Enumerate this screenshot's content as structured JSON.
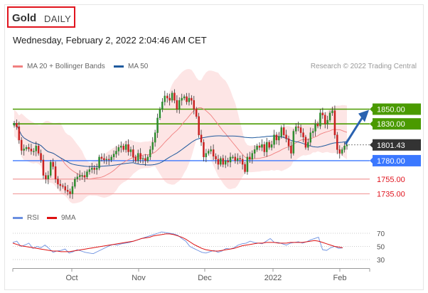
{
  "header": {
    "symbol": "Gold",
    "timeframe": "DAILY",
    "datetime": "Wednesday, February 2, 2022 2:04:46 AM CET"
  },
  "legend": {
    "bollinger": "MA 20 + Bollinger Bands",
    "ma50": "MA 50",
    "rsi": "RSI",
    "rsi_ma": "9MA",
    "copyright": "Research © 2022 Trading Central"
  },
  "colors": {
    "bollinger": "#f08080",
    "band_fill": "#fde0e0",
    "ma50": "#1f5a9e",
    "candle_up": "#2e8b2e",
    "candle_down": "#c82020",
    "resistance": "#4a9a00",
    "support_blue": "#3b78ff",
    "support_red": "#f3a3a3",
    "current": "#333333",
    "rsi": "#6a8fe0",
    "rsi_ma": "#dd1111",
    "arrow": "#2a62b0"
  },
  "chart_data": [
    {
      "type": "candlestick",
      "title": "",
      "xlabel": "",
      "ylabel": "",
      "xticks": [
        "Oct",
        "Nov",
        "Dec",
        "2022",
        "Feb"
      ],
      "ylim": [
        1712,
        1866
      ],
      "levels": [
        {
          "value": 1850.0,
          "label": "1850.00",
          "kind": "resistance"
        },
        {
          "value": 1830.0,
          "label": "1830.00",
          "kind": "resistance"
        },
        {
          "value": 1801.43,
          "label": "1801.43",
          "kind": "current"
        },
        {
          "value": 1780.0,
          "label": "1780.00",
          "kind": "pivot"
        },
        {
          "value": 1755.0,
          "label": "1755.00",
          "kind": "support"
        },
        {
          "value": 1735.0,
          "label": "1735.00",
          "kind": "support"
        }
      ],
      "close": [
        1831,
        1826,
        1808,
        1794,
        1796,
        1798,
        1796,
        1793,
        1793,
        1800,
        1790,
        1781,
        1760,
        1755,
        1760,
        1778,
        1772,
        1755,
        1748,
        1746,
        1745,
        1740,
        1738,
        1735,
        1745,
        1755,
        1758,
        1760,
        1760,
        1758,
        1765,
        1768,
        1770,
        1768,
        1770,
        1785,
        1783,
        1781,
        1782,
        1781,
        1785,
        1789,
        1793,
        1798,
        1800,
        1795,
        1802,
        1792,
        1795,
        1785,
        1780,
        1790,
        1782,
        1783,
        1780,
        1785,
        1795,
        1805,
        1818,
        1838,
        1850,
        1860,
        1868,
        1865,
        1862,
        1872,
        1862,
        1850,
        1862,
        1865,
        1867,
        1860,
        1865,
        1862,
        1850,
        1840,
        1815,
        1805,
        1785,
        1790,
        1793,
        1795,
        1786,
        1782,
        1775,
        1783,
        1775,
        1780,
        1778,
        1785,
        1785,
        1780,
        1783,
        1782,
        1775,
        1765,
        1785,
        1782,
        1790,
        1795,
        1800,
        1798,
        1802,
        1792,
        1805,
        1798,
        1802,
        1815,
        1808,
        1813,
        1825,
        1815,
        1810,
        1800,
        1790,
        1820,
        1826,
        1825,
        1818,
        1812,
        1798,
        1805,
        1818,
        1820,
        1830,
        1827,
        1845,
        1842,
        1830,
        1835,
        1845,
        1848,
        1815,
        1795,
        1790,
        1795,
        1800,
        1801.43
      ]
    },
    {
      "type": "line",
      "title": "",
      "xlabel": "",
      "ylabel": "",
      "yticks": [
        70,
        50,
        30
      ],
      "ylim": [
        20,
        80
      ],
      "series": [
        {
          "name": "RSI",
          "values": [
            56,
            58,
            50,
            52,
            55,
            47,
            50,
            48,
            52,
            47,
            41,
            43,
            44,
            46,
            40,
            42,
            45,
            43,
            41,
            40,
            39,
            42,
            45,
            48,
            51,
            53,
            52,
            54,
            55,
            56,
            58,
            60,
            62,
            64,
            66,
            68,
            70,
            72,
            71,
            70,
            69,
            67,
            62,
            58,
            50,
            47,
            44,
            41,
            40,
            42,
            44,
            41,
            43,
            47,
            46,
            48,
            52,
            54,
            55,
            58,
            56,
            55,
            54,
            58,
            62,
            56,
            56,
            54,
            52,
            55,
            56,
            57,
            55,
            57,
            60,
            62,
            64,
            45,
            44,
            48,
            50,
            47,
            48
          ]
        },
        {
          "name": "9MA",
          "values": [
            55,
            53,
            51,
            50,
            49,
            48,
            47,
            46,
            45,
            44,
            43,
            43,
            42,
            42,
            42,
            43,
            44,
            45,
            46,
            47,
            48,
            49,
            50,
            51,
            52,
            53,
            54,
            55,
            56,
            57,
            58,
            60,
            62,
            63,
            64,
            66,
            67,
            68,
            69,
            69,
            68,
            66,
            64,
            61,
            57,
            53,
            50,
            47,
            45,
            44,
            43,
            43,
            44,
            45,
            46,
            47,
            49,
            51,
            52,
            53,
            54,
            55,
            55,
            56,
            56,
            56,
            55,
            55,
            55,
            56,
            56,
            56,
            56,
            57,
            58,
            59,
            58,
            56,
            54,
            52,
            50,
            49,
            48
          ]
        }
      ]
    }
  ]
}
